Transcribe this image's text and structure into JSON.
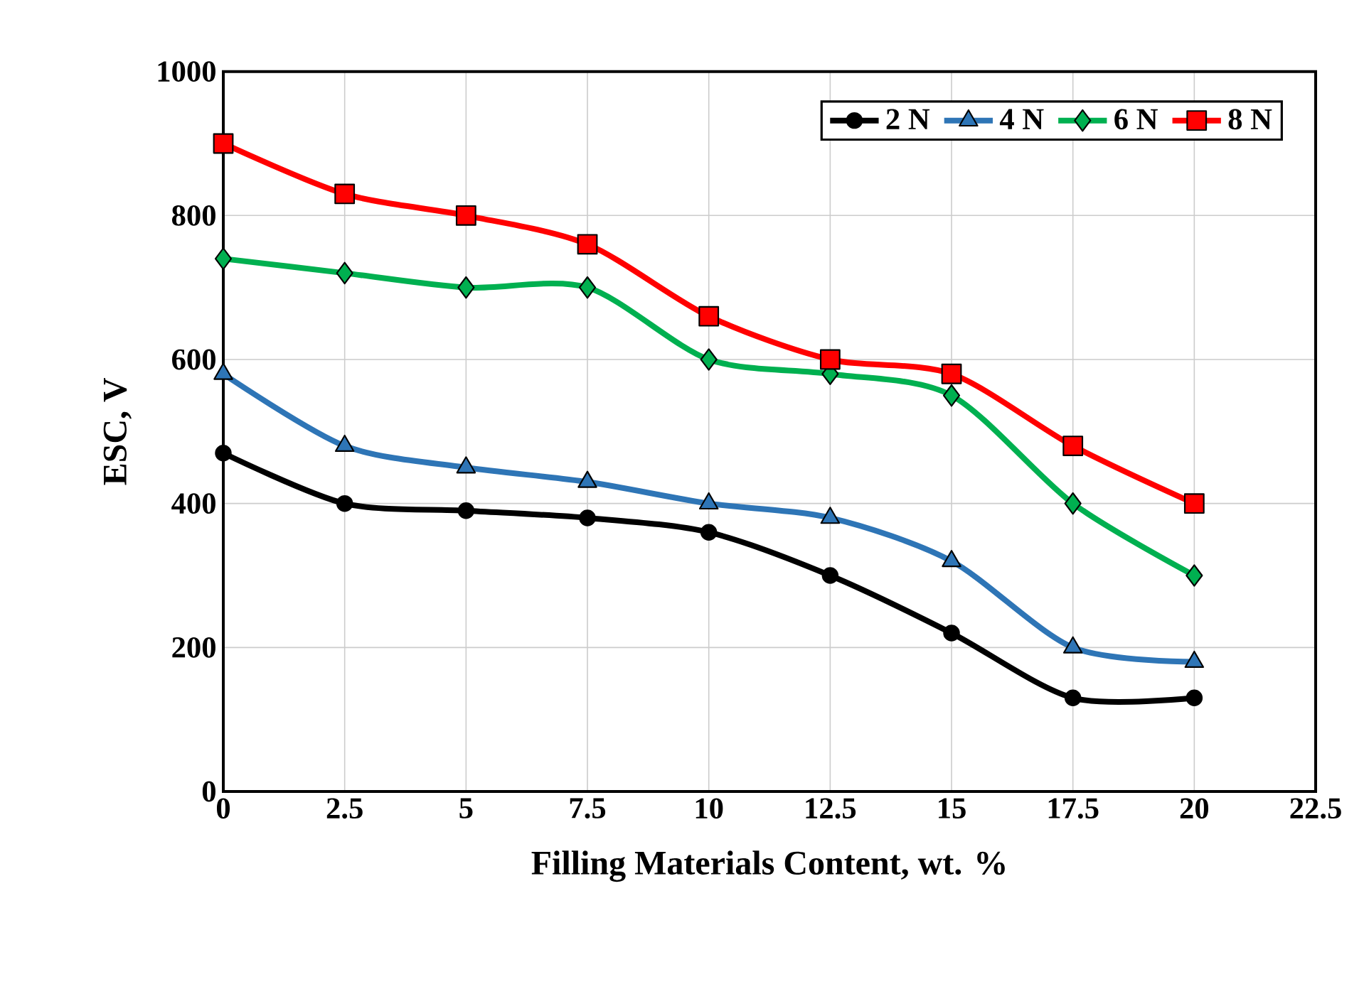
{
  "chart_data": {
    "type": "line",
    "xlabel": "Filling Materials Content, wt. %",
    "ylabel": "ESC, V",
    "x": [
      0,
      2.5,
      5,
      7.5,
      10,
      12.5,
      15,
      17.5,
      20
    ],
    "series": [
      {
        "name": "2 N",
        "color": "#000000",
        "marker": "circle",
        "values": [
          470,
          400,
          390,
          380,
          360,
          300,
          220,
          130,
          130
        ]
      },
      {
        "name": "4 N",
        "color": "#2e75b6",
        "marker": "triangle",
        "values": [
          580,
          480,
          450,
          430,
          400,
          380,
          320,
          200,
          180
        ]
      },
      {
        "name": "6 N",
        "color": "#00b050",
        "marker": "diamond",
        "values": [
          740,
          720,
          700,
          700,
          600,
          580,
          550,
          400,
          300
        ]
      },
      {
        "name": "8 N",
        "color": "#ff0000",
        "marker": "square",
        "values": [
          900,
          830,
          800,
          760,
          660,
          600,
          580,
          480,
          400
        ]
      }
    ],
    "xlim": [
      0,
      22.5
    ],
    "xticks": [
      0,
      2.5,
      5,
      7.5,
      10,
      12.5,
      15,
      17.5,
      20,
      22.5
    ],
    "ylim": [
      0,
      1000
    ],
    "yticks": [
      0,
      200,
      400,
      600,
      800,
      1000
    ],
    "grid": true,
    "legend": "top right",
    "line_style": "solid"
  }
}
